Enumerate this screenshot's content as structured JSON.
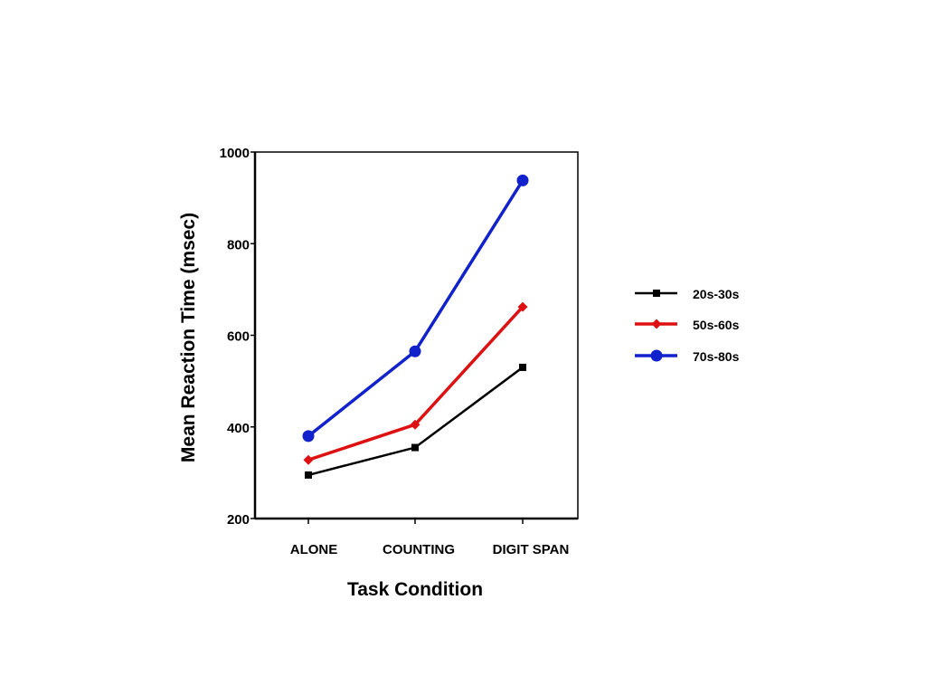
{
  "chart_data": {
    "type": "line",
    "categories": [
      "ALONE",
      "COUNTING",
      "DIGIT SPAN"
    ],
    "xlabel": "Task Condition",
    "ylabel": "Mean Reaction Time (msec)",
    "ylim": [
      200,
      1000
    ],
    "yticks": [
      200,
      400,
      600,
      800,
      1000
    ],
    "grid": false,
    "legend_position": "right",
    "series": [
      {
        "name": "20s-30s",
        "values": [
          295,
          355,
          530
        ],
        "color": "#000000",
        "marker": "square"
      },
      {
        "name": "50s-60s",
        "values": [
          328,
          405,
          662
        ],
        "color": "#dd1111",
        "marker": "diamond"
      },
      {
        "name": "70s-80s",
        "values": [
          380,
          565,
          938
        ],
        "color": "#1122cc",
        "marker": "circle"
      }
    ]
  }
}
